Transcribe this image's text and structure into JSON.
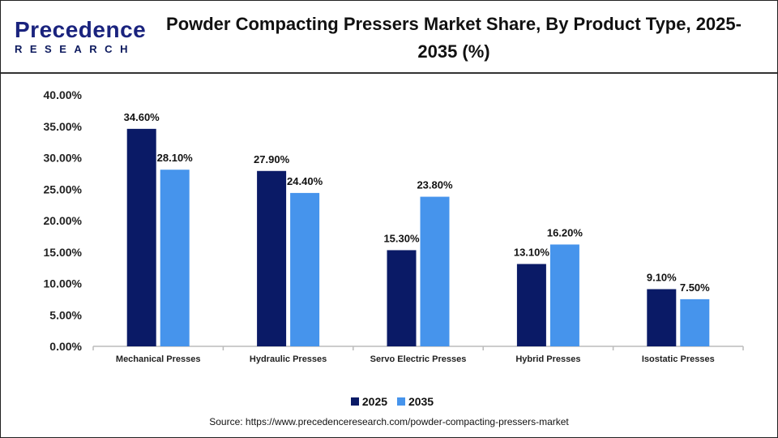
{
  "header": {
    "logo_line1": "Precedence",
    "logo_line2": "RESEARCH",
    "title": "Powder Compacting Pressers Market Share, By Product Type, 2025-2035 (%)"
  },
  "chart_data": {
    "type": "bar",
    "title": "Powder Compacting Pressers Market Share, By Product Type, 2025-2035 (%)",
    "categories": [
      "Mechanical Presses",
      "Hydraulic Presses",
      "Servo Electric Presses",
      "Hybrid Presses",
      "Isostatic Presses"
    ],
    "series": [
      {
        "name": "2025",
        "color": "#0a1a66",
        "values": [
          34.6,
          27.9,
          15.3,
          13.1,
          9.1
        ],
        "labels": [
          "34.60%",
          "27.90%",
          "15.30%",
          "13.10%",
          "9.10%"
        ]
      },
      {
        "name": "2035",
        "color": "#4694ec",
        "values": [
          28.1,
          24.4,
          23.8,
          16.2,
          7.5
        ],
        "labels": [
          "28.10%",
          "24.40%",
          "23.80%",
          "16.20%",
          "7.50%"
        ]
      }
    ],
    "ylim": [
      0,
      40
    ],
    "yticks": [
      "0.00%",
      "5.00%",
      "10.00%",
      "15.00%",
      "20.00%",
      "25.00%",
      "30.00%",
      "35.00%",
      "40.00%"
    ],
    "grid": false,
    "legend": "bottom"
  },
  "source": "Source: https://www.precedenceresearch.com/powder-compacting-pressers-market"
}
